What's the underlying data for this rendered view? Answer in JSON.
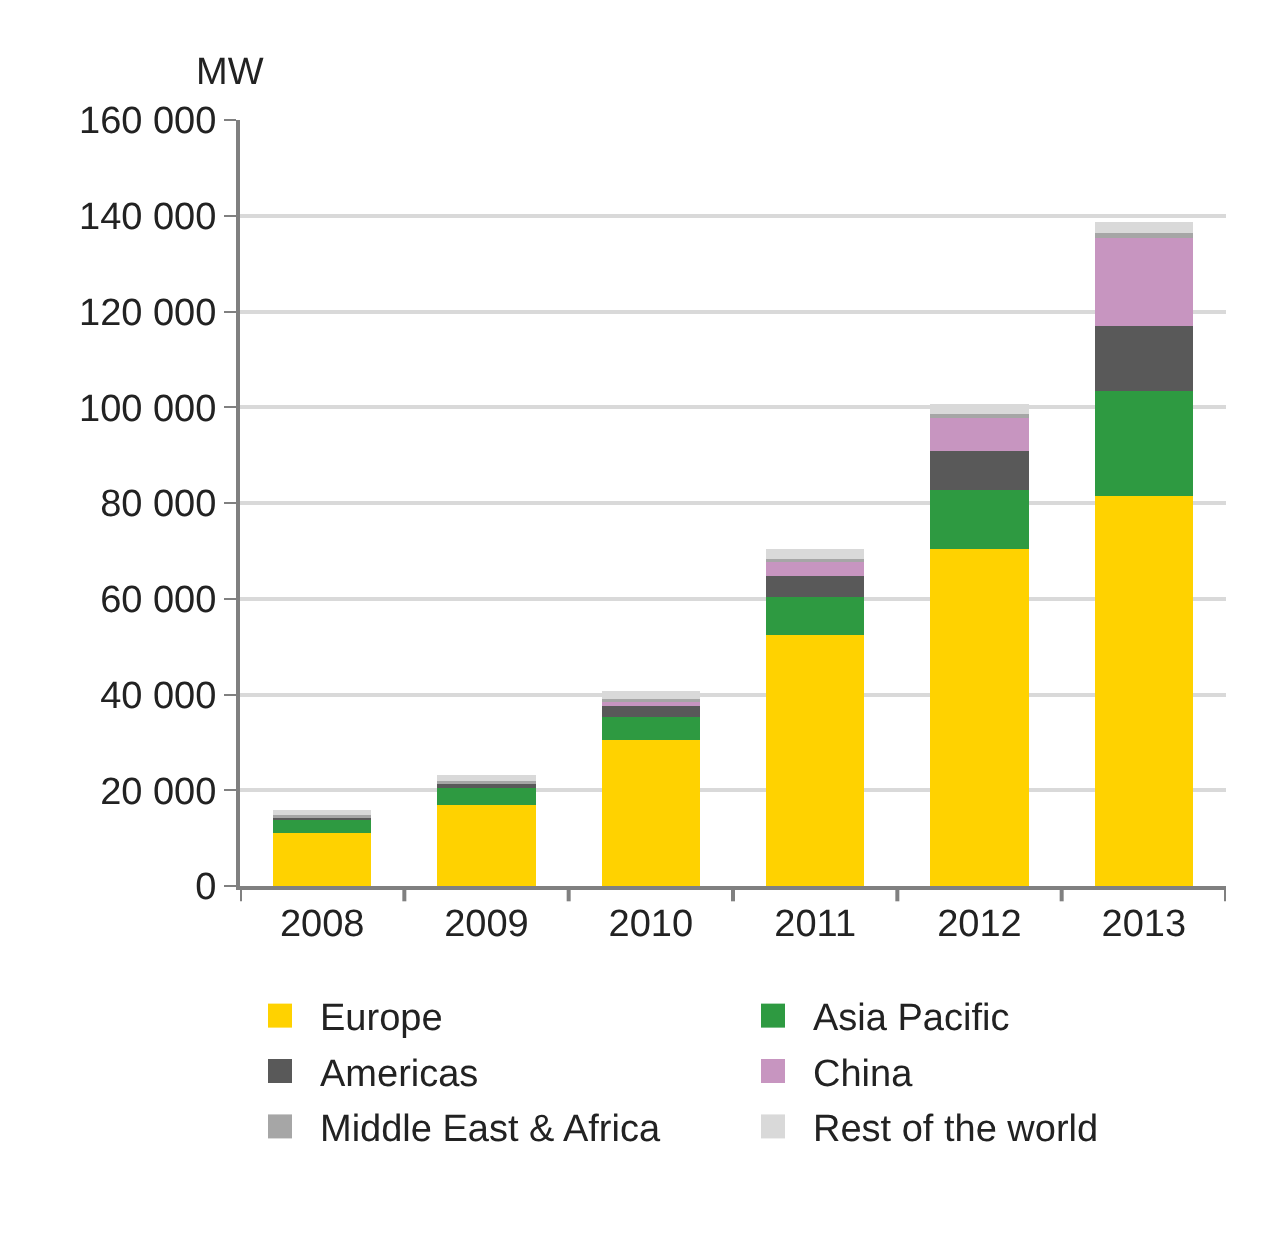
{
  "chart_data": {
    "type": "bar",
    "stacked": true,
    "ylabel": "MW",
    "categories": [
      "2008",
      "2009",
      "2010",
      "2011",
      "2012",
      "2013"
    ],
    "series": [
      {
        "name": "Europe",
        "color": "#ffd200",
        "values": [
          11000,
          17000,
          30500,
          52500,
          70400,
          81400
        ]
      },
      {
        "name": "Asia Pacific",
        "color": "#2e9a41",
        "values": [
          2800,
          3400,
          4900,
          7800,
          12300,
          22000
        ]
      },
      {
        "name": "Americas",
        "color": "#595959",
        "values": [
          700,
          1100,
          2500,
          4400,
          8100,
          13500
        ]
      },
      {
        "name": "China",
        "color": "#c795c0",
        "values": [
          100,
          200,
          800,
          3300,
          7300,
          18700
        ]
      },
      {
        "name": "Middle East & Africa",
        "color": "#a6a6a6",
        "values": [
          200,
          200,
          300,
          400,
          400,
          800
        ]
      },
      {
        "name": "Rest of the world",
        "color": "#d9d9d9",
        "values": [
          1100,
          1300,
          1700,
          2000,
          2100,
          2400
        ]
      }
    ],
    "ylim": [
      0,
      160000
    ],
    "yticks": [
      {
        "value": 0,
        "label": "0"
      },
      {
        "value": 20000,
        "label": "20 000"
      },
      {
        "value": 40000,
        "label": "40 000"
      },
      {
        "value": 60000,
        "label": "60 000"
      },
      {
        "value": 80000,
        "label": "80 000"
      },
      {
        "value": 100000,
        "label": "100 000"
      },
      {
        "value": 120000,
        "label": "120 000"
      },
      {
        "value": 140000,
        "label": "140 000"
      },
      {
        "value": 160000,
        "label": "160 000"
      }
    ],
    "grid": "y",
    "legend": "bottom"
  }
}
